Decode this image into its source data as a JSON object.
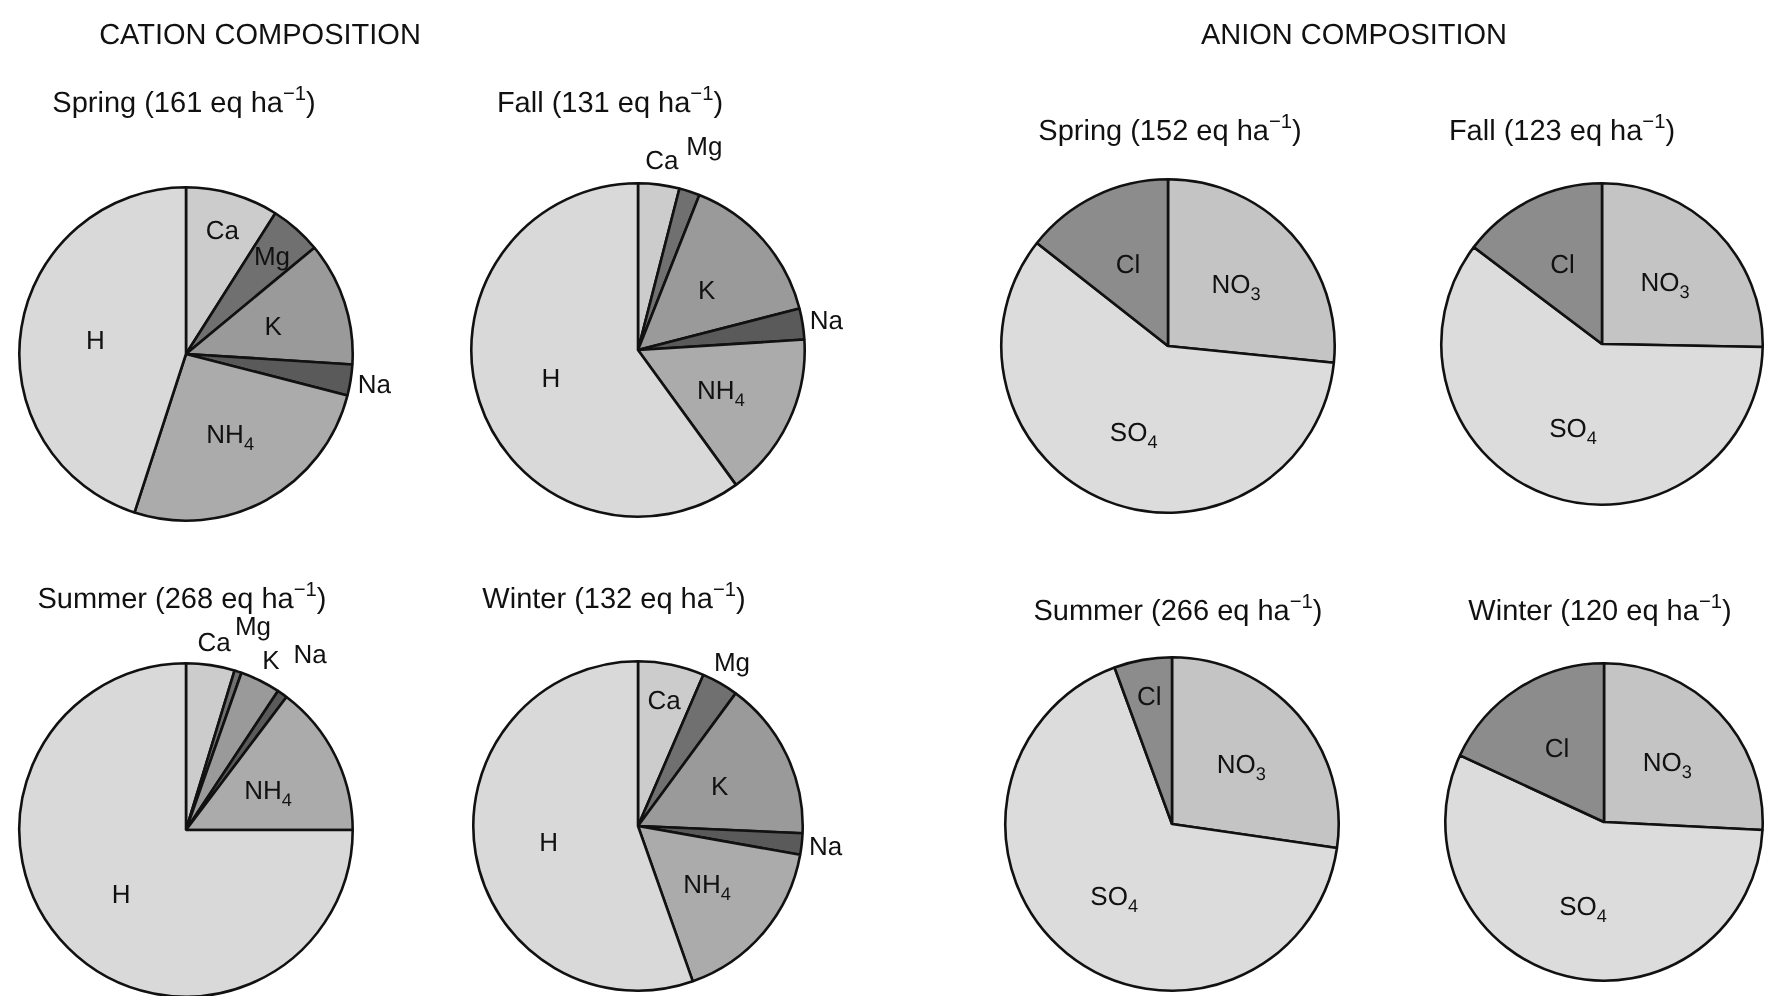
{
  "chart_data": [
    {
      "type": "pie",
      "title": "Spring (161 eq ha$^{−1}$)",
      "annotations": [
        "CATION COMPOSITION"
      ],
      "categories": [
        "Ca",
        "Mg",
        "K",
        "Na",
        "NH$_{4}$",
        "H"
      ],
      "values": [
        9,
        5,
        12,
        3,
        26,
        45
      ],
      "colors": [
        "#cccccc",
        "#707070",
        "#9a9a9a",
        "#5a5a5a",
        "#ababab",
        "#d9d9d9"
      ]
    },
    {
      "type": "pie",
      "title": "Fall (131 eq ha$^{−1}$)",
      "categories": [
        "Ca",
        "Mg",
        "K",
        "Na",
        "NH$_{4}$",
        "H"
      ],
      "values": [
        4,
        2,
        15,
        3,
        16,
        60
      ],
      "colors": [
        "#cccccc",
        "#707070",
        "#9a9a9a",
        "#5a5a5a",
        "#ababab",
        "#d9d9d9"
      ]
    },
    {
      "type": "pie",
      "title": "Summer (268 eq ha$^{−1}$)",
      "categories": [
        "Ca",
        "Mg",
        "K",
        "Na",
        "NH$_{4}$",
        "H"
      ],
      "values": [
        4.7,
        0.7,
        3.9,
        1.0,
        14.7,
        75.0
      ],
      "colors": [
        "#cccccc",
        "#707070",
        "#9a9a9a",
        "#5a5a5a",
        "#ababab",
        "#d9d9d9"
      ]
    },
    {
      "type": "pie",
      "title": "Winter (132 eq ha$^{−1}$)",
      "categories": [
        "Ca",
        "Mg",
        "K",
        "Na",
        "NH$_{4}$",
        "H"
      ],
      "values": [
        6.5,
        3.6,
        15.6,
        2.1,
        16.8,
        55.4
      ],
      "colors": [
        "#cccccc",
        "#707070",
        "#9a9a9a",
        "#5a5a5a",
        "#ababab",
        "#d9d9d9"
      ]
    },
    {
      "type": "pie",
      "title": "Spring (152 eq ha$^{−1}$)",
      "annotations": [
        "ANION COMPOSITION"
      ],
      "categories": [
        "NO$_{3}$",
        "SO$_{4}$",
        "Cl"
      ],
      "values": [
        26.6,
        59.0,
        14.4
      ],
      "colors": [
        "#c4c4c4",
        "#dcdcdc",
        "#8c8c8c"
      ]
    },
    {
      "type": "pie",
      "title": "Fall (123 eq ha$^{−1}$)",
      "categories": [
        "NO$_{3}$",
        "SO$_{4}$",
        "Cl"
      ],
      "values": [
        25.3,
        60.0,
        14.7
      ],
      "colors": [
        "#c4c4c4",
        "#dcdcdc",
        "#8c8c8c"
      ]
    },
    {
      "type": "pie",
      "title": "Summer (266 eq ha$^{−1}$)",
      "categories": [
        "NO$_{3}$",
        "SO$_{4}$",
        "Cl"
      ],
      "values": [
        27.3,
        67.1,
        5.6
      ],
      "colors": [
        "#c4c4c4",
        "#dcdcdc",
        "#8c8c8c"
      ]
    },
    {
      "type": "pie",
      "title": "Winter (120 eq ha$^{−1}$)",
      "categories": [
        "NO$_{3}$",
        "SO$_{4}$",
        "Cl"
      ],
      "values": [
        25.8,
        56.1,
        18.1
      ],
      "colors": [
        "#c4c4c4",
        "#dcdcdc",
        "#8c8c8c"
      ]
    }
  ]
}
